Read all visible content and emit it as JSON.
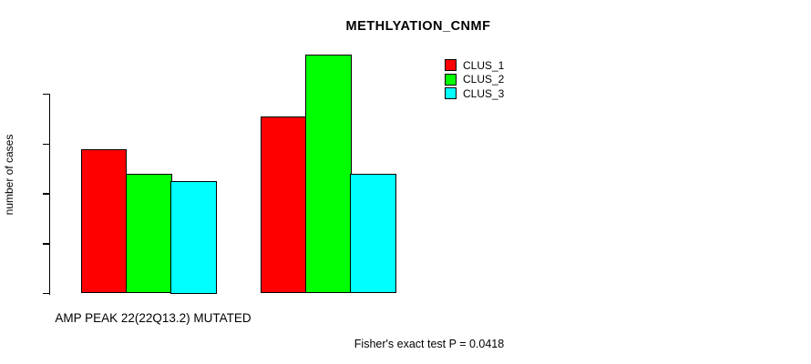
{
  "chart_data": {
    "type": "bar",
    "title": "METHLYATION_CNMF",
    "xlabel": "AMP PEAK 22(22Q13.2) MUTATED",
    "ylabel": "number of cases",
    "footnote": "Fisher's exact test P = 0.0418",
    "yticks": [
      0,
      20,
      40,
      60,
      80
    ],
    "ylim": [
      0,
      96
    ],
    "grid": false,
    "group_labels": [
      "AMP PEAK 22(22Q13.2) MUTATED",
      ""
    ],
    "series": [
      {
        "name": "CLUS_1",
        "color": "#FF0000",
        "values": [
          58,
          71
        ]
      },
      {
        "name": "CLUS_2",
        "color": "#00FF00",
        "values": [
          48,
          96
        ]
      },
      {
        "name": "CLUS_3",
        "color": "#00FFFF",
        "values": [
          45,
          48
        ]
      }
    ],
    "bar_value_labels": [
      [
        58,
        48,
        45
      ],
      [
        71,
        96,
        48
      ]
    ],
    "legend": {
      "position": "top-right",
      "entries": [
        "CLUS_1",
        "CLUS_2",
        "CLUS_3"
      ]
    },
    "colors": {
      "bar_border": "#000000",
      "axis": "#000000",
      "background": "#FFFFFF"
    }
  }
}
